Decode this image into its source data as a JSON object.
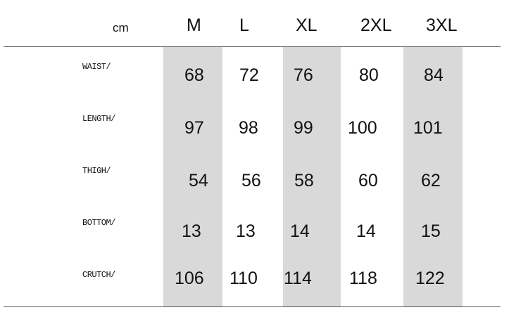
{
  "unit": "cm",
  "sizes": [
    "M",
    "L",
    "XL",
    "2XL",
    "3XL"
  ],
  "highlight_color": "#d9d9d9",
  "rows": [
    {
      "label": "WAIST/",
      "values": [
        "68",
        "72",
        "76",
        "80",
        "84"
      ]
    },
    {
      "label": "LENGTH/",
      "values": [
        "97",
        "98",
        "99",
        "100",
        "101"
      ]
    },
    {
      "label": "THIGH/",
      "values": [
        "54",
        "56",
        "58",
        "60",
        "62"
      ]
    },
    {
      "label": "BOTTOM/",
      "values": [
        "13",
        "13",
        "14",
        "14",
        "15"
      ]
    },
    {
      "label": "CRUTCH/",
      "values": [
        "106",
        "110",
        "114",
        "118",
        "122"
      ]
    }
  ]
}
